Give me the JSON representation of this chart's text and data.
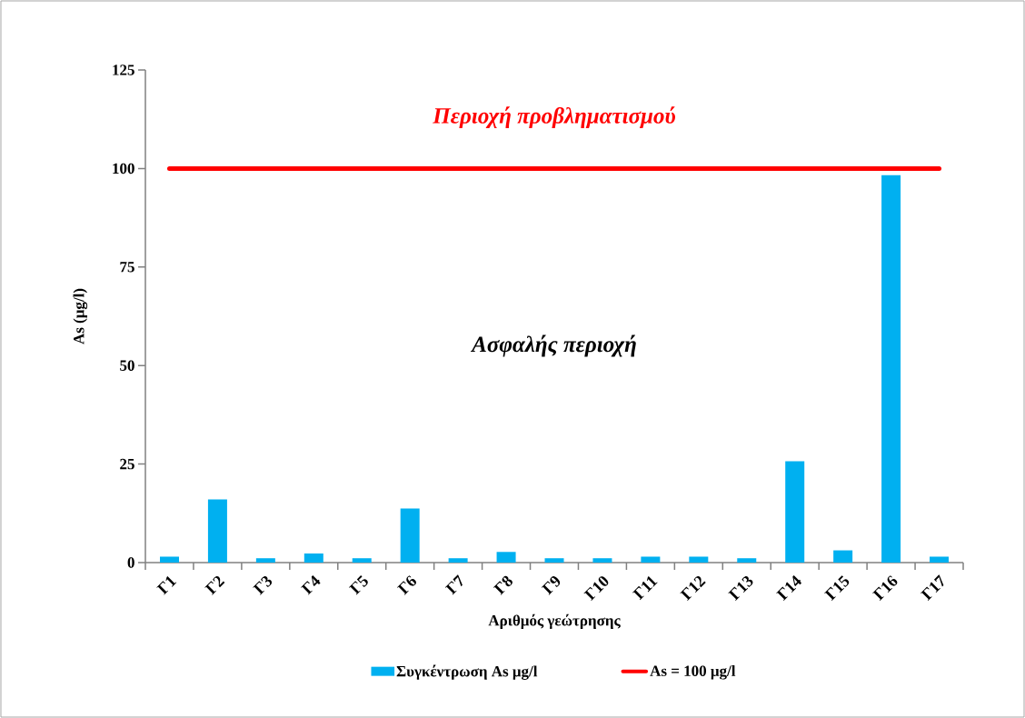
{
  "chart_data": {
    "type": "bar",
    "xlabel": "Αριθμός γεώτρησης",
    "ylabel": "As (μg/l)",
    "categories": [
      "Γ1",
      "Γ2",
      "Γ3",
      "Γ4",
      "Γ5",
      "Γ6",
      "Γ7",
      "Γ8",
      "Γ9",
      "Γ10",
      "Γ11",
      "Γ12",
      "Γ13",
      "Γ14",
      "Γ15",
      "Γ16",
      "Γ17"
    ],
    "series": [
      {
        "name": "Συγκέντρωση As μg/l",
        "color": "#00b0f0",
        "values": [
          1.5,
          16.0,
          1.1,
          2.3,
          1.1,
          13.7,
          1.1,
          2.7,
          1.1,
          1.1,
          1.5,
          1.5,
          1.1,
          25.7,
          3.1,
          98.3,
          1.5
        ]
      }
    ],
    "ylim": [
      0,
      125
    ],
    "yticks": [
      0,
      25,
      50,
      75,
      100,
      125
    ],
    "ref_lines": [
      {
        "axis": "y",
        "value": 100,
        "label": "As = 100 μg/l",
        "color": "#ff0000"
      }
    ],
    "annotations": [
      "Περιοχή προβληματισμού",
      "Ασφαλής περιοχή"
    ],
    "legend": "bottom"
  }
}
